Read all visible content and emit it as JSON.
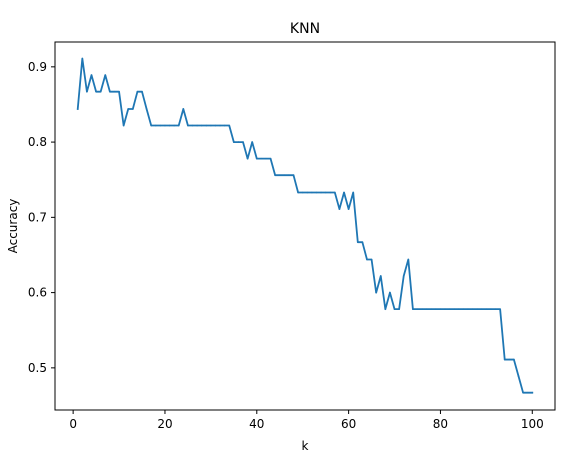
{
  "chart_data": {
    "type": "line",
    "title": "KNN",
    "xlabel": "k",
    "ylabel": "Accuracy",
    "xlim": [
      -3.95,
      104.95
    ],
    "ylim": [
      0.444,
      0.933
    ],
    "xticks": [
      0,
      20,
      40,
      60,
      80,
      100
    ],
    "yticks": [
      0.5,
      0.6,
      0.7,
      0.8,
      0.9
    ],
    "xtick_labels": [
      "0",
      "20",
      "40",
      "60",
      "80",
      "100"
    ],
    "ytick_labels": [
      "0.5",
      "0.6",
      "0.7",
      "0.8",
      "0.9"
    ],
    "grid": false,
    "legend": null,
    "series": [
      {
        "color": "#1f77b4",
        "x": [
          1,
          2,
          3,
          4,
          5,
          6,
          7,
          8,
          9,
          10,
          11,
          12,
          13,
          14,
          15,
          16,
          17,
          18,
          19,
          20,
          21,
          22,
          23,
          24,
          25,
          26,
          27,
          28,
          29,
          30,
          31,
          32,
          33,
          34,
          35,
          36,
          37,
          38,
          39,
          40,
          41,
          42,
          43,
          44,
          45,
          46,
          47,
          48,
          49,
          50,
          51,
          52,
          53,
          54,
          55,
          56,
          57,
          58,
          59,
          60,
          61,
          62,
          63,
          64,
          65,
          66,
          67,
          68,
          69,
          70,
          71,
          72,
          73,
          74,
          75,
          76,
          77,
          78,
          79,
          80,
          81,
          82,
          83,
          84,
          85,
          86,
          87,
          88,
          89,
          90,
          91,
          92,
          93,
          94,
          95,
          96,
          97,
          98,
          99,
          100
        ],
        "y": [
          0.844,
          0.911,
          0.867,
          0.889,
          0.867,
          0.867,
          0.889,
          0.867,
          0.867,
          0.867,
          0.822,
          0.844,
          0.844,
          0.867,
          0.867,
          0.844,
          0.822,
          0.822,
          0.822,
          0.822,
          0.822,
          0.822,
          0.822,
          0.844,
          0.822,
          0.822,
          0.822,
          0.822,
          0.822,
          0.822,
          0.822,
          0.822,
          0.822,
          0.822,
          0.8,
          0.8,
          0.8,
          0.778,
          0.8,
          0.778,
          0.778,
          0.778,
          0.778,
          0.756,
          0.756,
          0.756,
          0.756,
          0.756,
          0.733,
          0.733,
          0.733,
          0.733,
          0.733,
          0.733,
          0.733,
          0.733,
          0.733,
          0.711,
          0.733,
          0.711,
          0.733,
          0.667,
          0.667,
          0.644,
          0.644,
          0.6,
          0.622,
          0.578,
          0.6,
          0.578,
          0.578,
          0.622,
          0.644,
          0.578,
          0.578,
          0.578,
          0.578,
          0.578,
          0.578,
          0.578,
          0.578,
          0.578,
          0.578,
          0.578,
          0.578,
          0.578,
          0.578,
          0.578,
          0.578,
          0.578,
          0.578,
          0.578,
          0.578,
          0.511,
          0.511,
          0.511,
          0.489,
          0.467,
          0.467,
          0.467
        ]
      }
    ]
  }
}
